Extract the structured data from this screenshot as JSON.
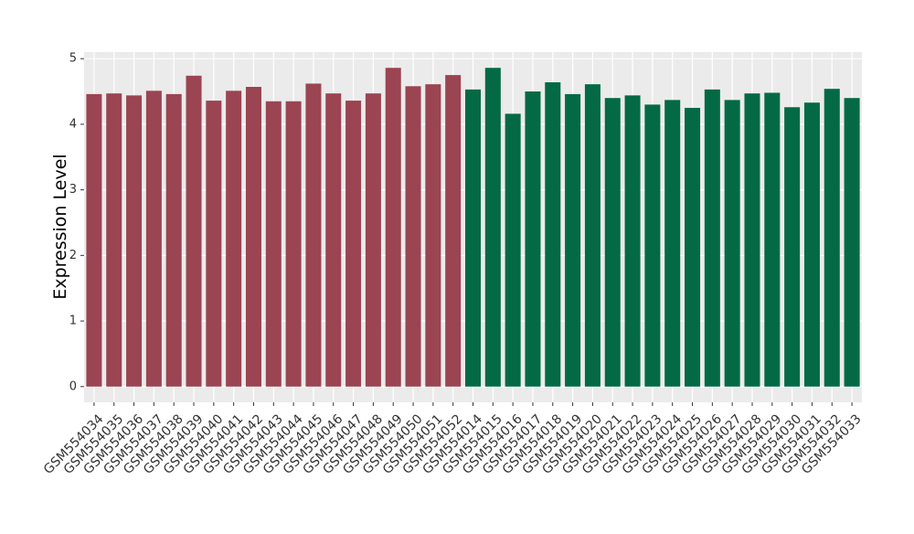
{
  "chart_data": {
    "type": "bar",
    "y_label": "Expression Level",
    "categories": [
      "GSM554034",
      "GSM554035",
      "GSM554036",
      "GSM554037",
      "GSM554038",
      "GSM554039",
      "GSM554040",
      "GSM554041",
      "GSM554042",
      "GSM554043",
      "GSM554044",
      "GSM554045",
      "GSM554046",
      "GSM554047",
      "GSM554048",
      "GSM554049",
      "GSM554050",
      "GSM554051",
      "GSM554052",
      "GSM554014",
      "GSM554015",
      "GSM554016",
      "GSM554017",
      "GSM554018",
      "GSM554019",
      "GSM554020",
      "GSM554021",
      "GSM554022",
      "GSM554023",
      "GSM554024",
      "GSM554025",
      "GSM554026",
      "GSM554027",
      "GSM554028",
      "GSM554029",
      "GSM554030",
      "GSM554031",
      "GSM554032",
      "GSM554033"
    ],
    "values": [
      4.46,
      4.47,
      4.44,
      4.51,
      4.46,
      4.74,
      4.36,
      4.51,
      4.57,
      4.35,
      4.35,
      4.62,
      4.47,
      4.36,
      4.47,
      4.86,
      4.58,
      4.61,
      4.75,
      4.53,
      4.86,
      4.16,
      4.5,
      4.64,
      4.46,
      4.61,
      4.4,
      4.44,
      4.3,
      4.37,
      4.25,
      4.53,
      4.37,
      4.47,
      4.48,
      4.26,
      4.33,
      4.54,
      4.4
    ],
    "colors": [
      "#9b4452",
      "#9b4452",
      "#9b4452",
      "#9b4452",
      "#9b4452",
      "#9b4452",
      "#9b4452",
      "#9b4452",
      "#9b4452",
      "#9b4452",
      "#9b4452",
      "#9b4452",
      "#9b4452",
      "#9b4452",
      "#9b4452",
      "#9b4452",
      "#9b4452",
      "#9b4452",
      "#9b4452",
      "#046a45",
      "#046a45",
      "#046a45",
      "#046a45",
      "#046a45",
      "#046a45",
      "#046a45",
      "#046a45",
      "#046a45",
      "#046a45",
      "#046a45",
      "#046a45",
      "#046a45",
      "#046a45",
      "#046a45",
      "#046a45",
      "#046a45",
      "#046a45",
      "#046a45",
      "#046a45"
    ],
    "ylim": [
      -0.24,
      5.1
    ],
    "yticks": [
      0,
      1,
      2,
      3,
      4,
      5
    ],
    "grid": true
  }
}
